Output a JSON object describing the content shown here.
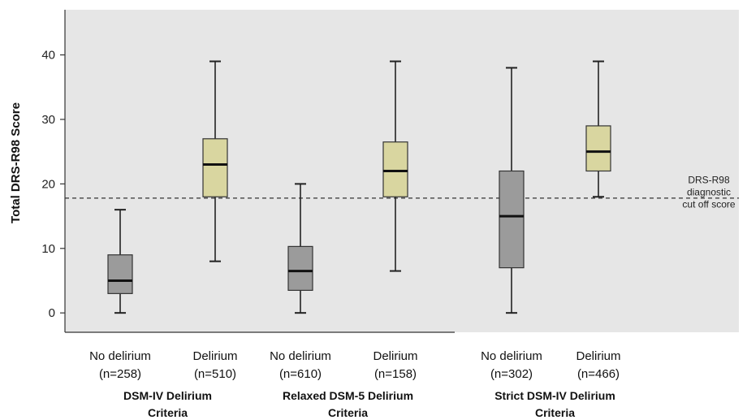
{
  "chart_data": {
    "type": "boxplot",
    "ylabel": "Total DRS-R98 Score",
    "ylim": [
      -3,
      47
    ],
    "yticks": [
      0,
      10,
      20,
      30,
      40
    ],
    "grid": false,
    "colors": {
      "no_delirium": "#9b9b9b",
      "delirium": "#d9d6a0",
      "plot_background": "#e6e6e6",
      "median": "#111111"
    },
    "reference_line": {
      "y": 17.8,
      "style": "dashed",
      "label_lines": [
        "DRS-R98",
        "diagnostic",
        "cut off score"
      ]
    },
    "groups": [
      {
        "label_lines": [
          "DSM-IV Delirium",
          "Criteria"
        ],
        "boxes": [
          {
            "category": "no_delirium",
            "label_lines": [
              "No delirium",
              "(n=258)"
            ],
            "min": 0,
            "q1": 3,
            "median": 5,
            "q3": 9,
            "max": 16
          },
          {
            "category": "delirium",
            "label_lines": [
              "Delirium",
              "(n=510)"
            ],
            "min": 8,
            "q1": 18,
            "median": 23,
            "q3": 27,
            "max": 39
          }
        ]
      },
      {
        "label_lines": [
          "Relaxed DSM-5 Delirium",
          "Criteria"
        ],
        "boxes": [
          {
            "category": "no_delirium",
            "label_lines": [
              "No delirium",
              "(n=610)"
            ],
            "min": 0,
            "q1": 3.5,
            "median": 6.5,
            "q3": 10.3,
            "max": 20
          },
          {
            "category": "delirium",
            "label_lines": [
              "Delirium",
              "(n=158)"
            ],
            "min": 6.5,
            "q1": 18,
            "median": 22,
            "q3": 26.5,
            "max": 39
          }
        ]
      },
      {
        "label_lines": [
          "Strict DSM-IV Delirium",
          "Criteria"
        ],
        "boxes": [
          {
            "category": "no_delirium",
            "label_lines": [
              "No delirium",
              "(n=302)"
            ],
            "min": 0,
            "q1": 7,
            "median": 15,
            "q3": 22,
            "max": 38
          },
          {
            "category": "delirium",
            "label_lines": [
              "Delirium",
              "(n=466)"
            ],
            "min": 18,
            "q1": 22,
            "median": 25,
            "q3": 29,
            "max": 39
          }
        ]
      }
    ]
  }
}
